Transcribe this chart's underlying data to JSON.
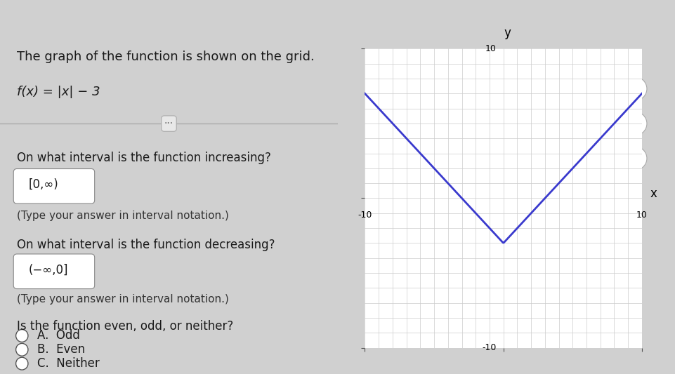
{
  "title_text": "The graph of the function is shown on the grid.",
  "function_label": "f(x) = |x| − 3",
  "question1": "On what interval is the function increasing?",
  "answer1": "[0,∞)",
  "answer1_note": "(Type your answer in interval notation.)",
  "question2": "On what interval is the function decreasing?",
  "answer2": "(−∞,0]",
  "answer2_note": "(Type your answer in interval notation.)",
  "question3": "Is the function even, odd, or neither?",
  "choice_a": "A.  Odd",
  "choice_b": "B.  Even",
  "choice_c": "C.  Neither",
  "graph_xlim": [
    -10,
    10
  ],
  "graph_ylim": [
    -10,
    10
  ],
  "graph_xtick": 10,
  "graph_ytick": 10,
  "curve_color": "#3a3acd",
  "curve_linewidth": 2.0,
  "bg_left": "#f0f0f0",
  "bg_right": "#e8e8e8",
  "bg_top": "#2b7bb9",
  "text_color": "#1a1a1a",
  "grid_color": "#cccccc",
  "axis_color": "#555555"
}
